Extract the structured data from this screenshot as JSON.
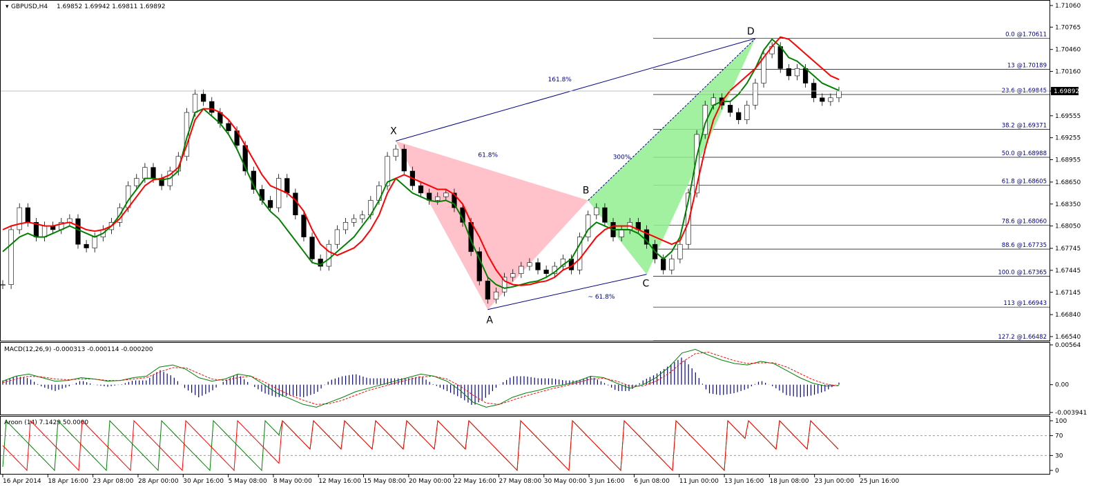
{
  "header": {
    "symbol": "GBPUSD,H4",
    "ohlc": "1.69852 1.69942 1.69811 1.69892"
  },
  "colors": {
    "green_line": "#008000",
    "red_line": "#ff0000",
    "yellow_mark": "#ffff00",
    "pattern_xab": "#ffb6c1",
    "pattern_bcd": "#90ee90",
    "pattern_line": "#000080",
    "macd_hist": "#000080",
    "fib_line": "#000000"
  },
  "chart_data": [
    {
      "type": "candlestick",
      "title": "GBPUSD,H4",
      "price_ticks": [
        "1.71060",
        "1.70765",
        "1.70460",
        "1.70160",
        "1.69892",
        "1.69555",
        "1.69255",
        "1.68955",
        "1.68650",
        "1.68350",
        "1.68050",
        "1.67745",
        "1.67445",
        "1.67145",
        "1.66840",
        "1.66540"
      ],
      "current_price": "1.69892",
      "ylim": [
        1.6654,
        1.7106
      ],
      "x_ticks": [
        "16 Apr 2014",
        "18 Apr 16:00",
        "23 Apr 08:00",
        "28 Apr 00:00",
        "30 Apr 16:00",
        "5 May 08:00",
        "8 May 00:00",
        "12 May 16:00",
        "15 May 08:00",
        "20 May 00:00",
        "22 May 16:00",
        "27 May 08:00",
        "30 May 00:00",
        "3 Jun 16:00",
        "6 Jun 08:00",
        "11 Jun 00:00",
        "13 Jun 16:00",
        "18 Jun 08:00",
        "23 Jun 00:00",
        "25 Jun 16:00"
      ],
      "pattern_points": [
        {
          "label": "X",
          "price": 1.6921
        },
        {
          "label": "A",
          "price": 1.6691
        },
        {
          "label": "B",
          "price": 1.684
        },
        {
          "label": "C",
          "price": 1.6739
        },
        {
          "label": "D",
          "price": 1.7061
        }
      ],
      "pattern_ratios": [
        {
          "text": "161.8%"
        },
        {
          "text": "61.8%"
        },
        {
          "text": "300%"
        },
        {
          "text": "~ 61.8%"
        }
      ],
      "fib_levels": [
        {
          "label": "0.0 @1.70611",
          "price": 1.70611
        },
        {
          "label": "13 @1.70189",
          "price": 1.70189
        },
        {
          "label": "23.6 @1.69845",
          "price": 1.69845
        },
        {
          "label": "38.2 @1.69371",
          "price": 1.69371
        },
        {
          "label": "50.0 @1.68988",
          "price": 1.68988
        },
        {
          "label": "61.8 @1.68605",
          "price": 1.68605
        },
        {
          "label": "78.6 @1.68060",
          "price": 1.6806
        },
        {
          "label": "88.6 @1.67735",
          "price": 1.67735
        },
        {
          "label": "100.0 @1.67365",
          "price": 1.67365
        },
        {
          "label": "113 @1.66943",
          "price": 1.66943
        },
        {
          "label": "127.2 @1.66482",
          "price": 1.66482
        }
      ],
      "closes": [
        1.6725,
        1.68,
        1.683,
        1.681,
        1.679,
        1.6805,
        1.68,
        1.681,
        1.6815,
        1.678,
        1.6775,
        1.679,
        1.68,
        1.681,
        1.683,
        1.686,
        1.687,
        1.6885,
        1.687,
        1.686,
        1.688,
        1.69,
        1.696,
        1.6985,
        1.6975,
        1.696,
        1.6945,
        1.6935,
        1.6915,
        1.688,
        1.6855,
        1.684,
        1.683,
        1.687,
        1.685,
        1.682,
        1.679,
        1.676,
        1.675,
        1.678,
        1.68,
        1.681,
        1.6815,
        1.682,
        1.684,
        1.686,
        1.69,
        1.691,
        1.688,
        1.686,
        1.685,
        1.684,
        1.6845,
        1.685,
        1.683,
        1.681,
        1.677,
        1.673,
        1.6705,
        1.6715,
        1.6735,
        1.674,
        1.675,
        1.6755,
        1.6745,
        1.674,
        1.675,
        1.676,
        1.6745,
        1.679,
        1.682,
        1.683,
        1.681,
        1.679,
        1.68,
        1.681,
        1.68,
        1.678,
        1.676,
        1.6745,
        1.676,
        1.678,
        1.685,
        1.693,
        1.697,
        1.698,
        1.697,
        1.696,
        1.695,
        1.697,
        1.7,
        1.704,
        1.705,
        1.702,
        1.701,
        1.702,
        1.7,
        1.698,
        1.6975,
        1.698,
        1.6989
      ],
      "red_ma": [
        1.68,
        1.6805,
        1.6808,
        1.681,
        1.6808,
        1.6805,
        1.6805,
        1.6808,
        1.681,
        1.6805,
        1.68,
        1.6798,
        1.68,
        1.6805,
        1.6815,
        1.683,
        1.6845,
        1.686,
        1.6868,
        1.687,
        1.6875,
        1.6885,
        1.6915,
        1.695,
        1.6965,
        1.6965,
        1.696,
        1.695,
        1.6935,
        1.6915,
        1.6895,
        1.6875,
        1.686,
        1.6855,
        1.685,
        1.684,
        1.6825,
        1.68,
        1.678,
        1.677,
        1.6765,
        1.677,
        1.6775,
        1.6785,
        1.68,
        1.682,
        1.685,
        1.687,
        1.6875,
        1.687,
        1.6865,
        1.686,
        1.6855,
        1.6855,
        1.6848,
        1.6835,
        1.681,
        1.679,
        1.6765,
        1.6745,
        1.673,
        1.6725,
        1.6724,
        1.6725,
        1.6728,
        1.673,
        1.6735,
        1.6745,
        1.675,
        1.676,
        1.6775,
        1.679,
        1.68,
        1.6805,
        1.6805,
        1.6805,
        1.68,
        1.6795,
        1.679,
        1.6785,
        1.678,
        1.6785,
        1.681,
        1.686,
        1.691,
        1.695,
        1.6975,
        1.699,
        1.7,
        1.701,
        1.702,
        1.7035,
        1.705,
        1.7063,
        1.706,
        1.705,
        1.704,
        1.703,
        1.702,
        1.701,
        1.7005
      ],
      "green_ma": [
        1.677,
        1.678,
        1.679,
        1.6795,
        1.679,
        1.679,
        1.6795,
        1.68,
        1.6805,
        1.68,
        1.6795,
        1.679,
        1.6795,
        1.6805,
        1.682,
        1.684,
        1.6855,
        1.687,
        1.687,
        1.6868,
        1.687,
        1.688,
        1.6925,
        1.696,
        1.6965,
        1.6955,
        1.6945,
        1.693,
        1.691,
        1.6885,
        1.686,
        1.684,
        1.6825,
        1.6815,
        1.68,
        1.6785,
        1.677,
        1.6755,
        1.6752,
        1.676,
        1.677,
        1.678,
        1.679,
        1.6805,
        1.682,
        1.684,
        1.6865,
        1.687,
        1.686,
        1.685,
        1.6845,
        1.684,
        1.6838,
        1.684,
        1.6835,
        1.6815,
        1.6785,
        1.676,
        1.6735,
        1.6725,
        1.672,
        1.6722,
        1.6725,
        1.6728,
        1.673,
        1.6735,
        1.6742,
        1.6752,
        1.676,
        1.678,
        1.68,
        1.681,
        1.6805,
        1.68,
        1.68,
        1.68,
        1.6795,
        1.6785,
        1.677,
        1.676,
        1.677,
        1.679,
        1.684,
        1.69,
        1.6945,
        1.697,
        1.6975,
        1.6975,
        1.6985,
        1.7,
        1.702,
        1.7045,
        1.706,
        1.705,
        1.7035,
        1.703,
        1.702,
        1.701,
        1.7,
        1.6995,
        1.699
      ]
    },
    {
      "type": "line",
      "title": "MACD(12,26,9) -0.000313 -0.000114 -0.000200",
      "y_ticks": [
        "0.00564",
        "0.00",
        "-0.003941"
      ],
      "ylim": [
        -0.00394,
        0.00564
      ],
      "macd": [
        0.0005,
        0.0012,
        0.0015,
        0.001,
        0.0005,
        0.0006,
        0.001,
        0.0008,
        0.0005,
        0.0006,
        0.001,
        0.0012,
        0.0025,
        0.0028,
        0.0022,
        0.001,
        0.0005,
        0.0008,
        0.0015,
        0.0012,
        0.0,
        -0.0012,
        -0.002,
        -0.0028,
        -0.0032,
        -0.0025,
        -0.0018,
        -0.001,
        -0.0005,
        0.0,
        0.0005,
        0.001,
        0.0015,
        0.0012,
        0.0005,
        -0.0008,
        -0.0025,
        -0.0032,
        -0.0028,
        -0.0018,
        -0.0012,
        -0.0008,
        -0.0003,
        0.0,
        0.0005,
        0.0012,
        0.001,
        0.0002,
        -0.0005,
        0.0,
        0.001,
        0.0025,
        0.0045,
        0.005,
        0.0042,
        0.0035,
        0.003,
        0.0028,
        0.0033,
        0.003,
        0.002,
        0.001,
        0.0002,
        -0.0002,
        -0.0001
      ],
      "signal": [
        0.0003,
        0.0008,
        0.0012,
        0.0011,
        0.0008,
        0.0007,
        0.0008,
        0.0008,
        0.0006,
        0.0006,
        0.0008,
        0.001,
        0.0018,
        0.0024,
        0.0024,
        0.0016,
        0.0008,
        0.0006,
        0.001,
        0.0012,
        0.0004,
        -0.0006,
        -0.0015,
        -0.0022,
        -0.0028,
        -0.0027,
        -0.0022,
        -0.0015,
        -0.0008,
        -0.0003,
        0.0002,
        0.0007,
        0.0011,
        0.0012,
        0.0008,
        -0.0002,
        -0.0015,
        -0.0026,
        -0.0028,
        -0.0022,
        -0.0016,
        -0.0011,
        -0.0006,
        -0.0002,
        0.0003,
        0.0008,
        0.0009,
        0.0005,
        -0.0002,
        -0.0002,
        0.0005,
        0.0016,
        0.0032,
        0.0044,
        0.0046,
        0.004,
        0.0034,
        0.003,
        0.0031,
        0.0031,
        0.0025,
        0.0016,
        0.0007,
        0.0001,
        -0.0002
      ]
    },
    {
      "type": "line",
      "title": "Aroon (14) 7.1429 50.0000",
      "y_ticks": [
        "100",
        "70",
        "30",
        "0"
      ],
      "ylim": [
        0,
        100
      ],
      "aroon_down": [
        0,
        100,
        92.9,
        85.7,
        78.6,
        71.4,
        64.3,
        57.1,
        50.0
      ],
      "aroon_up": [
        7.1,
        100,
        92.9,
        85.7,
        78.6,
        71.4,
        64.3,
        57.1,
        50.0
      ]
    }
  ]
}
